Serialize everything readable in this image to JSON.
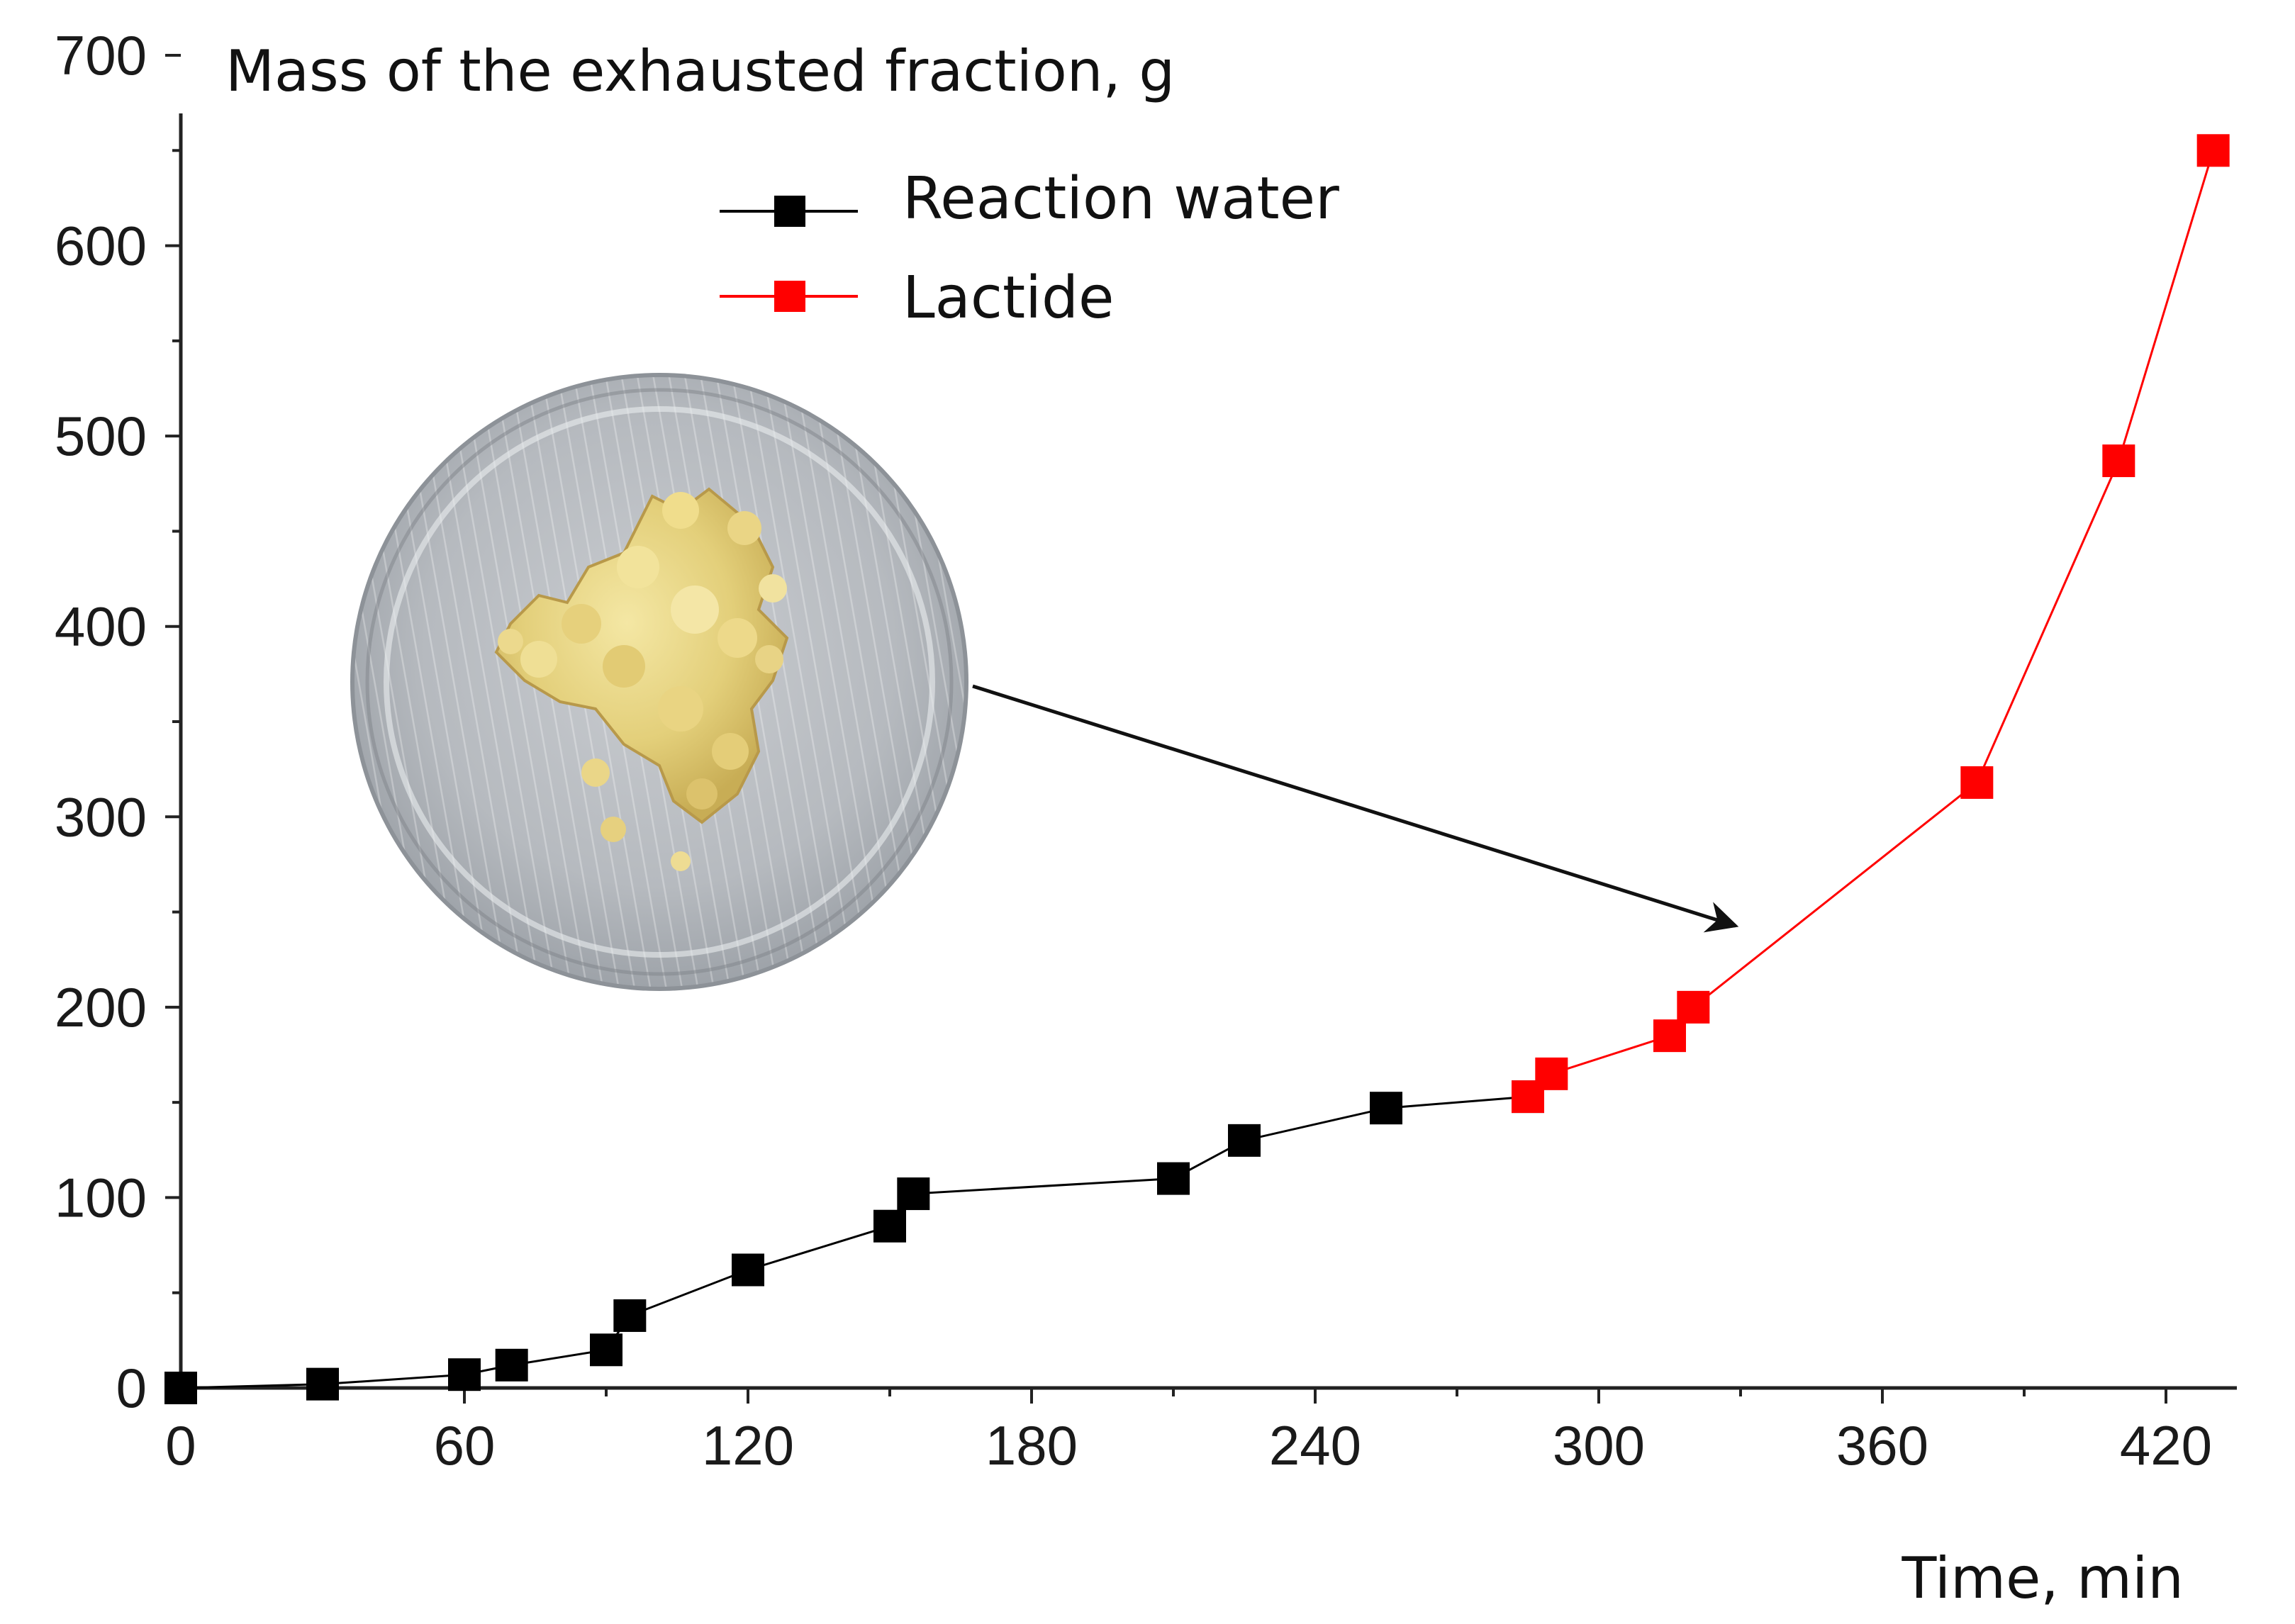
{
  "chart_data": {
    "type": "line",
    "title": "",
    "ylabel": "Mass of the exhausted fraction, g",
    "xlabel": "Time, min",
    "xlim": [
      0,
      435
    ],
    "ylim": [
      0,
      700
    ],
    "x_ticks": [
      0,
      60,
      120,
      180,
      240,
      300,
      360,
      420
    ],
    "y_ticks": [
      0,
      100,
      200,
      300,
      400,
      500,
      600,
      700
    ],
    "x_minor_step": 30,
    "y_minor_step": 50,
    "grid": false,
    "legend_position": "top-center",
    "series": [
      {
        "name": "Reaction water",
        "color": "#000000",
        "marker": "square",
        "points": [
          [
            0,
            0
          ],
          [
            30,
            2
          ],
          [
            60,
            7
          ],
          [
            70,
            12
          ],
          [
            90,
            20
          ],
          [
            95,
            38
          ],
          [
            120,
            62
          ],
          [
            150,
            85
          ],
          [
            155,
            102
          ],
          [
            210,
            110
          ],
          [
            225,
            130
          ],
          [
            255,
            147
          ],
          [
            285,
            153
          ]
        ]
      },
      {
        "name": "Lactide",
        "color": "#ff0000",
        "marker": "square",
        "points": [
          [
            285,
            153
          ],
          [
            290,
            165
          ],
          [
            315,
            185
          ],
          [
            320,
            200
          ],
          [
            380,
            318
          ],
          [
            410,
            487
          ],
          [
            430,
            650
          ]
        ]
      }
    ],
    "inset_image": "photo-icon",
    "annotation_arrow": true
  }
}
